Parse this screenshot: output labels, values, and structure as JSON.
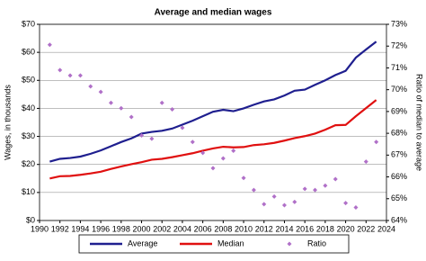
{
  "chart_data": {
    "type": "line",
    "title": "Average and median wages",
    "y_label": "Wages, in thousands",
    "y2_label": "Ratio of median to average",
    "x": [
      1991,
      1992,
      1993,
      1994,
      1995,
      1996,
      1997,
      1998,
      1999,
      2000,
      2001,
      2002,
      2003,
      2004,
      2005,
      2006,
      2007,
      2008,
      2009,
      2010,
      2011,
      2012,
      2013,
      2014,
      2015,
      2016,
      2017,
      2018,
      2019,
      2020,
      2021,
      2022,
      2023
    ],
    "xlim": [
      1990,
      2024
    ],
    "xticks": [
      1990,
      1992,
      1994,
      1996,
      1998,
      2000,
      2002,
      2004,
      2006,
      2008,
      2010,
      2012,
      2014,
      2016,
      2018,
      2020,
      2022,
      2024
    ],
    "ylim": [
      0,
      70
    ],
    "yticks": [
      {
        "value": 0,
        "label": "$0"
      },
      {
        "value": 10,
        "label": "$10"
      },
      {
        "value": 20,
        "label": "$20"
      },
      {
        "value": 30,
        "label": "$30"
      },
      {
        "value": 40,
        "label": "$40"
      },
      {
        "value": 50,
        "label": "$50"
      },
      {
        "value": 60,
        "label": "$60"
      },
      {
        "value": 70,
        "label": "$70"
      }
    ],
    "y2lim": [
      64,
      73
    ],
    "y2ticks": [
      {
        "value": 64,
        "label": "64%"
      },
      {
        "value": 65,
        "label": "65%"
      },
      {
        "value": 66,
        "label": "66%"
      },
      {
        "value": 67,
        "label": "67%"
      },
      {
        "value": 68,
        "label": "68%"
      },
      {
        "value": 69,
        "label": "69%"
      },
      {
        "value": 70,
        "label": "70%"
      },
      {
        "value": 71,
        "label": "71%"
      },
      {
        "value": 72,
        "label": "72%"
      },
      {
        "value": 73,
        "label": "73%"
      }
    ],
    "grid": true,
    "legend": "bottom",
    "series": [
      {
        "name": "Average",
        "color": "#1f1f8f",
        "values": [
          21,
          22,
          22.3,
          22.8,
          23.8,
          25,
          26.5,
          28,
          29.3,
          31,
          31.6,
          32,
          32.8,
          34.2,
          35.6,
          37.2,
          38.8,
          39.5,
          39,
          40,
          41.3,
          42.5,
          43.2,
          44.6,
          46.3,
          46.7,
          48.4,
          50,
          51.9,
          53.4,
          58.1,
          61,
          63.8
        ]
      },
      {
        "name": "Median",
        "color": "#e01010",
        "values": [
          15,
          15.8,
          15.9,
          16.3,
          16.8,
          17.4,
          18.4,
          19.3,
          20.1,
          20.8,
          21.7,
          22,
          22.6,
          23.3,
          24,
          24.9,
          25.7,
          26.3,
          26.1,
          26.2,
          26.9,
          27.2,
          27.7,
          28.5,
          29.4,
          30.1,
          31,
          32.4,
          34,
          34.1,
          37.2,
          40.1,
          43
        ]
      },
      {
        "name": "Ratio",
        "color": "#b070c8",
        "type": "scatter",
        "axis": "y2",
        "values": [
          72.06,
          70.9,
          70.65,
          70.65,
          70.15,
          69.9,
          69.4,
          69.15,
          68.75,
          67.9,
          67.75,
          69.4,
          69.1,
          68.25,
          67.6,
          67.1,
          66.4,
          66.85,
          67.2,
          65.95,
          65.4,
          64.75,
          65.1,
          64.7,
          64.85,
          65.45,
          65.4,
          65.6,
          65.9,
          64.8,
          64.6,
          66.7,
          67.6
        ]
      }
    ]
  }
}
